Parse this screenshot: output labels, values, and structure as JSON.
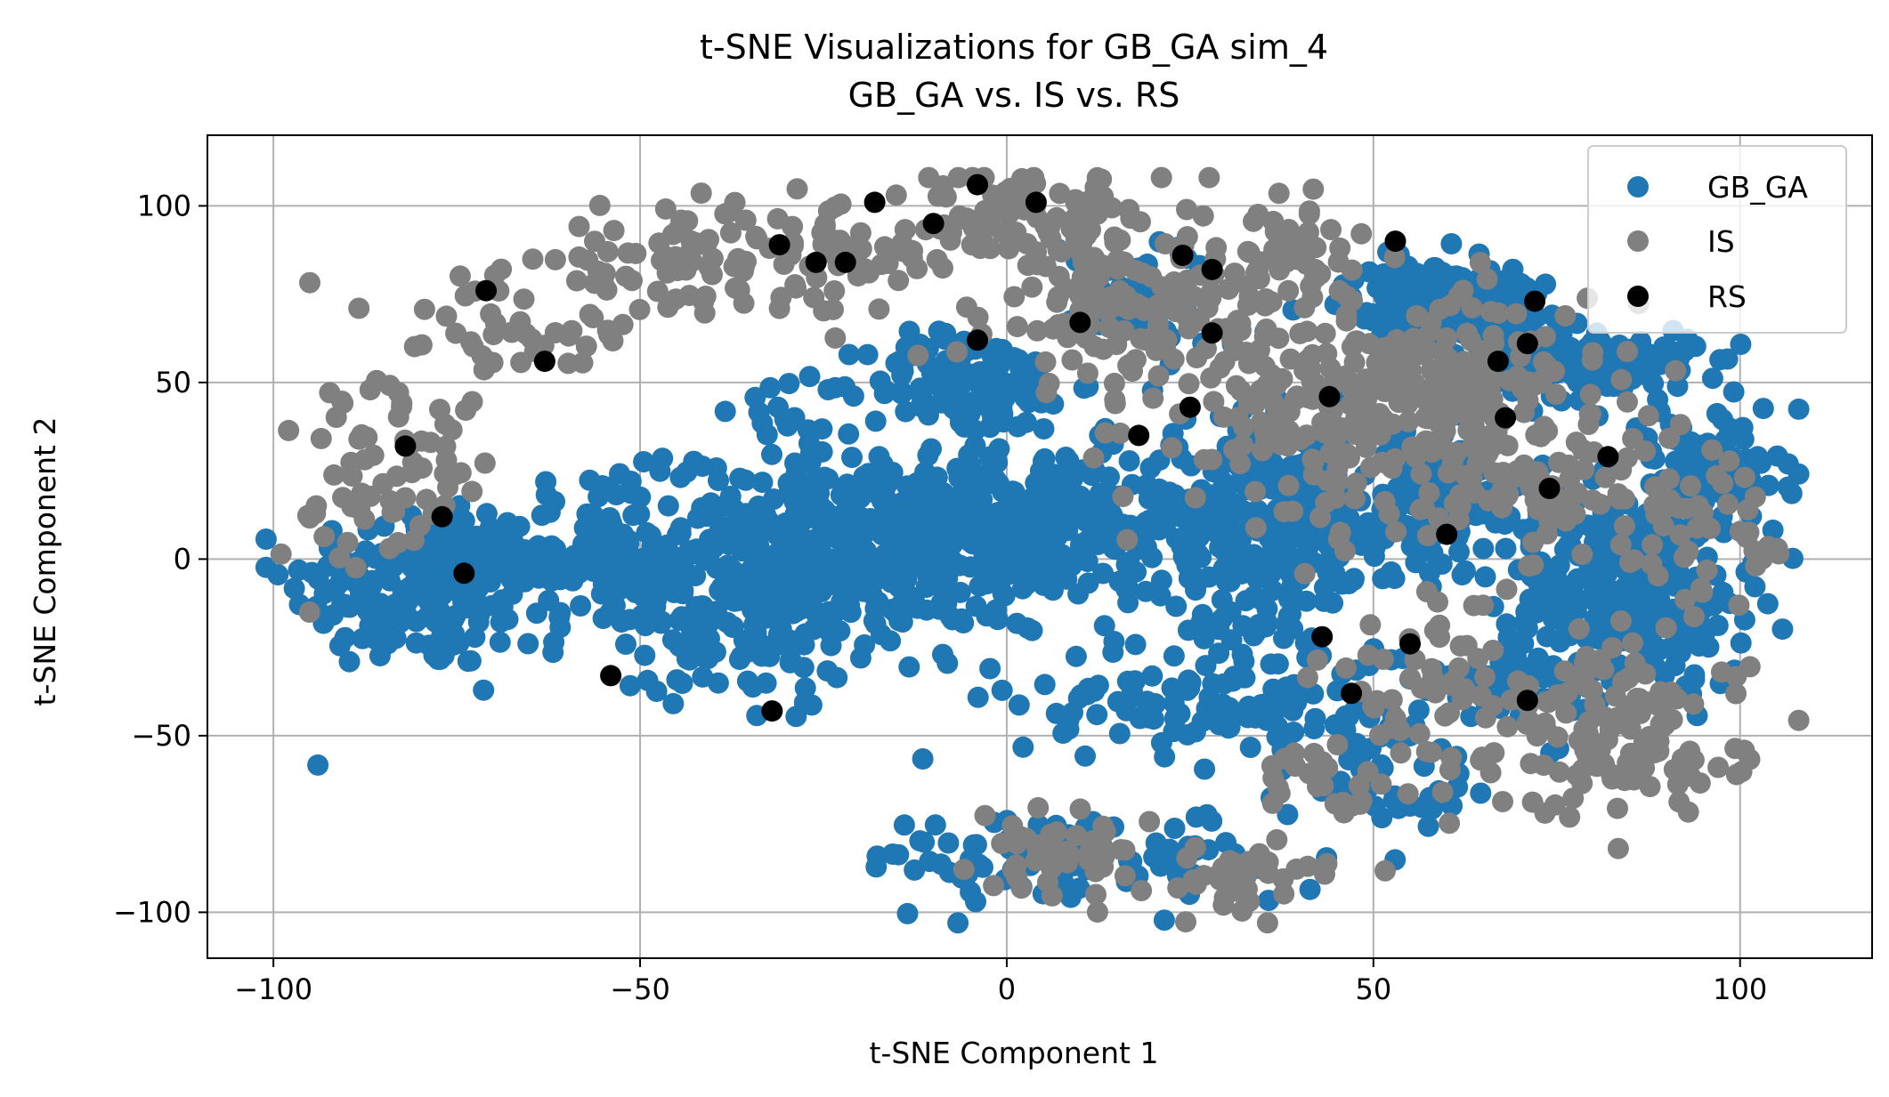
{
  "chart_data": {
    "type": "scatter",
    "title": "t-SNE Visualizations for GB_GA sim_4",
    "subtitle": "GB_GA vs. IS vs. RS",
    "xlabel": "t-SNE Component 1",
    "ylabel": "t-SNE Component 2",
    "xlim": [
      -109,
      118
    ],
    "ylim": [
      -113,
      120
    ],
    "x_ticks": [
      -100,
      -50,
      0,
      50,
      100
    ],
    "y_ticks": [
      -100,
      -50,
      0,
      50,
      100
    ],
    "x_tick_labels": [
      "−100",
      "−50",
      "0",
      "50",
      "100"
    ],
    "y_tick_labels": [
      "−100",
      "−50",
      "0",
      "50",
      "100"
    ],
    "grid": true,
    "legend_position": "top-right",
    "series": [
      {
        "name": "GB_GA",
        "color": "#1f77b4",
        "clusters": [
          {
            "cx": -80,
            "cy": -8,
            "sx": 9,
            "sy": 12,
            "n": 180
          },
          {
            "cx": -55,
            "cy": 2,
            "sx": 9,
            "sy": 11,
            "n": 150
          },
          {
            "cx": -20,
            "cy": 5,
            "sx": 13,
            "sy": 12,
            "n": 430
          },
          {
            "cx": 5,
            "cy": 10,
            "sx": 9,
            "sy": 11,
            "n": 180
          },
          {
            "cx": -5,
            "cy": 50,
            "sx": 7,
            "sy": 7,
            "n": 140
          },
          {
            "cx": 35,
            "cy": 10,
            "sx": 10,
            "sy": 14,
            "n": 330
          },
          {
            "cx": 30,
            "cy": -40,
            "sx": 14,
            "sy": 9,
            "n": 140
          },
          {
            "cx": 12,
            "cy": -85,
            "sx": 16,
            "sy": 7,
            "n": 100
          },
          {
            "cx": 60,
            "cy": 72,
            "sx": 7,
            "sy": 6,
            "n": 200
          },
          {
            "cx": 80,
            "cy": 55,
            "sx": 7,
            "sy": 5,
            "n": 140
          },
          {
            "cx": 85,
            "cy": -8,
            "sx": 8,
            "sy": 14,
            "n": 320
          },
          {
            "cx": 95,
            "cy": 25,
            "sx": 6,
            "sy": 8,
            "n": 90
          },
          {
            "cx": 20,
            "cy": 75,
            "sx": 6,
            "sy": 8,
            "n": 50
          },
          {
            "cx": -35,
            "cy": -20,
            "sx": 12,
            "sy": 10,
            "n": 140
          },
          {
            "cx": 60,
            "cy": 15,
            "sx": 7,
            "sy": 10,
            "n": 110
          },
          {
            "cx": 55,
            "cy": -60,
            "sx": 8,
            "sy": 10,
            "n": 40
          },
          {
            "cx": -30,
            "cy": 40,
            "sx": 4,
            "sy": 6,
            "n": 15
          },
          {
            "cx": 70,
            "cy": -35,
            "sx": 6,
            "sy": 6,
            "n": 40
          }
        ]
      },
      {
        "name": "IS",
        "color": "#808080",
        "clusters": [
          {
            "cx": -45,
            "cy": 85,
            "sx": 9,
            "sy": 7,
            "n": 70
          },
          {
            "cx": -22,
            "cy": 85,
            "sx": 6,
            "sy": 8,
            "n": 50
          },
          {
            "cx": -68,
            "cy": 65,
            "sx": 9,
            "sy": 8,
            "n": 45
          },
          {
            "cx": -82,
            "cy": 25,
            "sx": 6,
            "sy": 12,
            "n": 55
          },
          {
            "cx": -92,
            "cy": 15,
            "sx": 3,
            "sy": 14,
            "n": 15
          },
          {
            "cx": 5,
            "cy": 95,
            "sx": 8,
            "sy": 7,
            "n": 70
          },
          {
            "cx": 12,
            "cy": 70,
            "sx": 7,
            "sy": 10,
            "n": 70
          },
          {
            "cx": 30,
            "cy": 75,
            "sx": 10,
            "sy": 12,
            "n": 90
          },
          {
            "cx": 45,
            "cy": 40,
            "sx": 12,
            "sy": 14,
            "n": 200
          },
          {
            "cx": 65,
            "cy": 50,
            "sx": 10,
            "sy": 14,
            "n": 130
          },
          {
            "cx": 75,
            "cy": 20,
            "sx": 8,
            "sy": 12,
            "n": 70
          },
          {
            "cx": 85,
            "cy": -50,
            "sx": 8,
            "sy": 12,
            "n": 120
          },
          {
            "cx": 60,
            "cy": -40,
            "sx": 9,
            "sy": 15,
            "n": 70
          },
          {
            "cx": 95,
            "cy": 5,
            "sx": 5,
            "sy": 12,
            "n": 40
          },
          {
            "cx": 8,
            "cy": -85,
            "sx": 6,
            "sy": 6,
            "n": 50
          },
          {
            "cx": 32,
            "cy": -90,
            "sx": 6,
            "sy": 5,
            "n": 40
          },
          {
            "cx": 42,
            "cy": -65,
            "sx": 4,
            "sy": 6,
            "n": 20
          },
          {
            "cx": 40,
            "cy": 90,
            "sx": 5,
            "sy": 5,
            "n": 25
          },
          {
            "cx": -4,
            "cy": 100,
            "sx": 3,
            "sy": 6,
            "n": 15
          }
        ]
      },
      {
        "name": "RS",
        "color": "#000000",
        "points": [
          [
            -71,
            76
          ],
          [
            -63,
            56
          ],
          [
            -82,
            32
          ],
          [
            -77,
            12
          ],
          [
            -74,
            -4
          ],
          [
            -54,
            -33
          ],
          [
            -32,
            -43
          ],
          [
            -31,
            89
          ],
          [
            -26,
            84
          ],
          [
            -22,
            84
          ],
          [
            -18,
            101
          ],
          [
            -10,
            95
          ],
          [
            -4,
            106
          ],
          [
            -4,
            62
          ],
          [
            4,
            101
          ],
          [
            10,
            67
          ],
          [
            18,
            35
          ],
          [
            25,
            43
          ],
          [
            24,
            86
          ],
          [
            28,
            82
          ],
          [
            28,
            64
          ],
          [
            44,
            46
          ],
          [
            43,
            -22
          ],
          [
            47,
            -38
          ],
          [
            53,
            90
          ],
          [
            55,
            -24
          ],
          [
            60,
            7
          ],
          [
            67,
            56
          ],
          [
            68,
            40
          ],
          [
            71,
            61
          ],
          [
            72,
            73
          ],
          [
            71,
            -40
          ],
          [
            74,
            20
          ],
          [
            82,
            29
          ]
        ]
      }
    ]
  }
}
